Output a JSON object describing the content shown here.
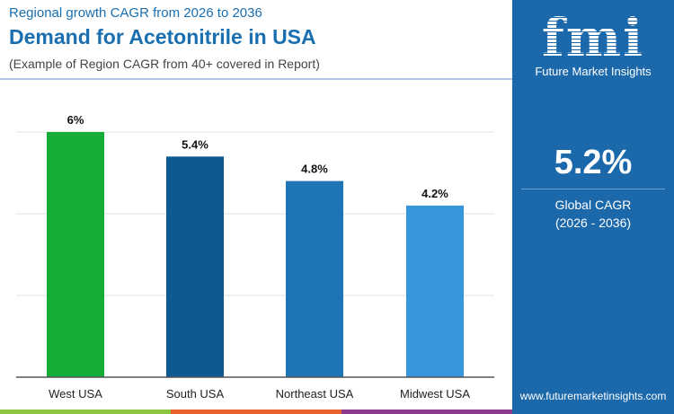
{
  "header": {
    "subtitle": "Regional growth CAGR from 2026 to 2036",
    "title": "Demand for Acetonitrile in USA",
    "note": "(Example of Region CAGR from 40+ covered in Report)"
  },
  "panel": {
    "logo": "fmi",
    "logo_text": "Future Market Insights",
    "global_value": "5.2%",
    "global_label": "Global CAGR",
    "global_period": "(2026 - 2036)",
    "url": "www.futuremarketinsights.com"
  },
  "chart_data": {
    "type": "bar",
    "categories": [
      "West USA",
      "South USA",
      "Northeast USA",
      "Midwest USA"
    ],
    "values": [
      6,
      5.4,
      4.8,
      4.2
    ],
    "labels": [
      "6%",
      "5.4%",
      "4.8%",
      "4.2%"
    ],
    "colors": [
      "#16ad36",
      "#0d5a92",
      "#1f74b5",
      "#3597d9"
    ],
    "ylim": [
      0,
      6
    ],
    "grid": true
  },
  "strip_colors": [
    "#8cc63f",
    "#e8602c",
    "#8e3a8d"
  ]
}
